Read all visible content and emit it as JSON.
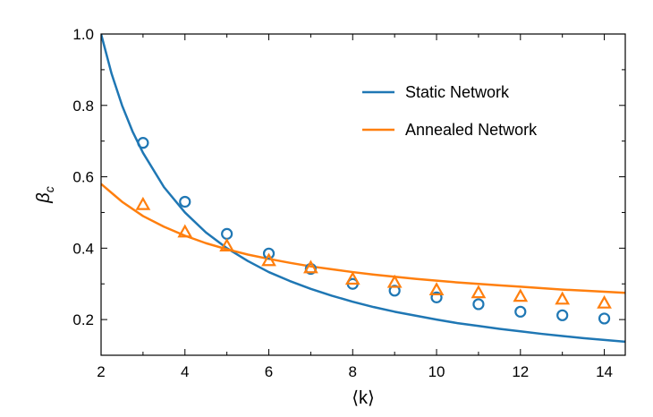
{
  "chart_data": {
    "type": "line",
    "title": "",
    "xlabel": "⟨k⟩",
    "ylabel": "β",
    "ylabel_sub": "c",
    "xlim": [
      2,
      14.5
    ],
    "ylim": [
      0.1,
      1.0
    ],
    "xticks": [
      2,
      4,
      6,
      8,
      10,
      12,
      14
    ],
    "xtick_labels": [
      "2",
      "4",
      "6",
      "8",
      "10",
      "12",
      "14"
    ],
    "yticks": [
      0.2,
      0.4,
      0.6,
      0.8,
      1.0
    ],
    "ytick_labels": [
      "0.2",
      "0.4",
      "0.6",
      "0.8",
      "1.0"
    ],
    "grid": false,
    "legend_position": "top-right",
    "series": [
      {
        "name": "Static Network",
        "color": "#1f77b4",
        "line_x": [
          2,
          2.25,
          2.5,
          2.75,
          3,
          3.5,
          4,
          4.5,
          5,
          5.5,
          6,
          6.5,
          7,
          7.5,
          8,
          8.5,
          9,
          9.5,
          10,
          10.5,
          11,
          11.5,
          12,
          12.5,
          13,
          13.5,
          14,
          14.5
        ],
        "line_y": [
          1.0,
          0.889,
          0.8,
          0.727,
          0.667,
          0.571,
          0.5,
          0.444,
          0.4,
          0.364,
          0.333,
          0.308,
          0.286,
          0.267,
          0.25,
          0.235,
          0.222,
          0.211,
          0.2,
          0.19,
          0.182,
          0.174,
          0.167,
          0.16,
          0.154,
          0.148,
          0.143,
          0.138
        ],
        "marker": "circle",
        "points_x": [
          3,
          4,
          5,
          6,
          7,
          8,
          9,
          10,
          11,
          12,
          13,
          14
        ],
        "points_y": [
          0.695,
          0.53,
          0.44,
          0.385,
          0.342,
          0.3,
          0.281,
          0.262,
          0.243,
          0.222,
          0.212,
          0.203
        ]
      },
      {
        "name": "Annealed Network",
        "color": "#ff7f0e",
        "line_x": [
          2,
          2.5,
          3,
          3.5,
          4,
          4.5,
          5,
          5.5,
          6,
          6.5,
          7,
          7.5,
          8,
          8.5,
          9,
          9.5,
          10,
          10.5,
          11,
          11.5,
          12,
          12.5,
          13,
          13.5,
          14,
          14.5
        ],
        "line_y": [
          0.58,
          0.53,
          0.49,
          0.46,
          0.435,
          0.414,
          0.397,
          0.382,
          0.37,
          0.359,
          0.349,
          0.341,
          0.333,
          0.326,
          0.32,
          0.314,
          0.309,
          0.304,
          0.3,
          0.296,
          0.292,
          0.288,
          0.284,
          0.281,
          0.278,
          0.275
        ],
        "marker": "triangle",
        "points_x": [
          3,
          4,
          5,
          6,
          7,
          8,
          9,
          10,
          11,
          12,
          13,
          14
        ],
        "points_y": [
          0.522,
          0.445,
          0.406,
          0.365,
          0.345,
          0.313,
          0.304,
          0.283,
          0.275,
          0.265,
          0.257,
          0.246
        ]
      }
    ]
  }
}
